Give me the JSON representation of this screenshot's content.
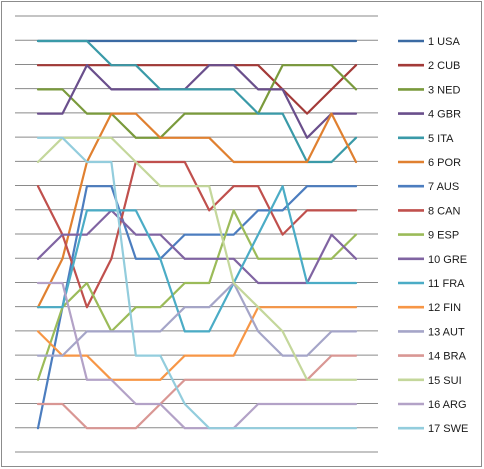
{
  "chart_data": {
    "type": "line",
    "title": "",
    "xlabel": "",
    "ylabel": "",
    "x": [
      1,
      2,
      3,
      4,
      5,
      6,
      7,
      8,
      9,
      10,
      11,
      12,
      13,
      14
    ],
    "ylim": [
      1,
      17
    ],
    "y_reversed": true,
    "grid": true,
    "legend_position": "right",
    "series": [
      {
        "name": "1 USA",
        "color": "#3b6aa3",
        "values": [
          1,
          1,
          1,
          1,
          1,
          1,
          1,
          1,
          1,
          1,
          1,
          1,
          1,
          1
        ]
      },
      {
        "name": "2 CUB",
        "color": "#a33a38",
        "values": [
          2,
          2,
          2,
          2,
          2,
          2,
          2,
          2,
          2,
          2,
          3,
          4,
          3,
          2
        ]
      },
      {
        "name": "3 NED",
        "color": "#7a9a3c",
        "values": [
          3,
          3,
          4,
          4,
          5,
          5,
          4,
          4,
          4,
          4,
          2,
          2,
          2,
          3
        ]
      },
      {
        "name": "4 GBR",
        "color": "#6a4f8c",
        "values": [
          4,
          4,
          2,
          3,
          3,
          3,
          3,
          2,
          2,
          3,
          3,
          5,
          4,
          4
        ]
      },
      {
        "name": "5 ITA",
        "color": "#3a9aa8",
        "values": [
          1,
          1,
          1,
          2,
          2,
          3,
          3,
          3,
          3,
          4,
          4,
          6,
          6,
          5
        ]
      },
      {
        "name": "6 POR",
        "color": "#e08030",
        "values": [
          12,
          10,
          6,
          4,
          4,
          5,
          5,
          5,
          6,
          6,
          6,
          6,
          4,
          6
        ]
      },
      {
        "name": "7 AUS",
        "color": "#4c7dbf",
        "values": [
          17,
          12,
          7,
          7,
          10,
          10,
          9,
          9,
          9,
          8,
          8,
          7,
          7,
          7
        ]
      },
      {
        "name": "8 CAN",
        "color": "#c0504d",
        "values": [
          7,
          9,
          12,
          10,
          6,
          6,
          6,
          8,
          7,
          7,
          9,
          8,
          8,
          8
        ]
      },
      {
        "name": "9 ESP",
        "color": "#9bbb59",
        "values": [
          15,
          12,
          11,
          13,
          12,
          12,
          11,
          11,
          8,
          10,
          10,
          10,
          10,
          9
        ]
      },
      {
        "name": "10 GRE",
        "color": "#8064a2",
        "values": [
          10,
          9,
          9,
          8,
          9,
          9,
          10,
          10,
          10,
          11,
          11,
          11,
          9,
          10
        ]
      },
      {
        "name": "11 FRA",
        "color": "#4bacc6",
        "values": [
          12,
          12,
          8,
          8,
          8,
          10,
          13,
          13,
          11,
          9,
          7,
          11,
          11,
          11
        ]
      },
      {
        "name": "12 FIN",
        "color": "#f79646",
        "values": [
          13,
          14,
          14,
          15,
          15,
          15,
          14,
          14,
          14,
          12,
          12,
          12,
          12,
          12
        ]
      },
      {
        "name": "13 AUT",
        "color": "#a5a5c8",
        "values": [
          14,
          14,
          13,
          13,
          13,
          13,
          12,
          12,
          11,
          13,
          14,
          14,
          13,
          13
        ]
      },
      {
        "name": "14 BRA",
        "color": "#d99794",
        "values": [
          16,
          16,
          17,
          17,
          17,
          16,
          15,
          15,
          15,
          15,
          15,
          15,
          14,
          14
        ]
      },
      {
        "name": "15 SUI",
        "color": "#c4d79b",
        "values": [
          6,
          5,
          5,
          5,
          6,
          7,
          7,
          7,
          11,
          12,
          13,
          15,
          15,
          15
        ]
      },
      {
        "name": "16 ARG",
        "color": "#b3a2c7",
        "values": [
          11,
          11,
          15,
          15,
          16,
          16,
          17,
          17,
          17,
          16,
          16,
          16,
          16,
          16
        ]
      },
      {
        "name": "17 SWE",
        "color": "#93cddd",
        "values": [
          5,
          5,
          6,
          6,
          14,
          14,
          16,
          17,
          17,
          17,
          17,
          17,
          17,
          17
        ]
      }
    ]
  }
}
